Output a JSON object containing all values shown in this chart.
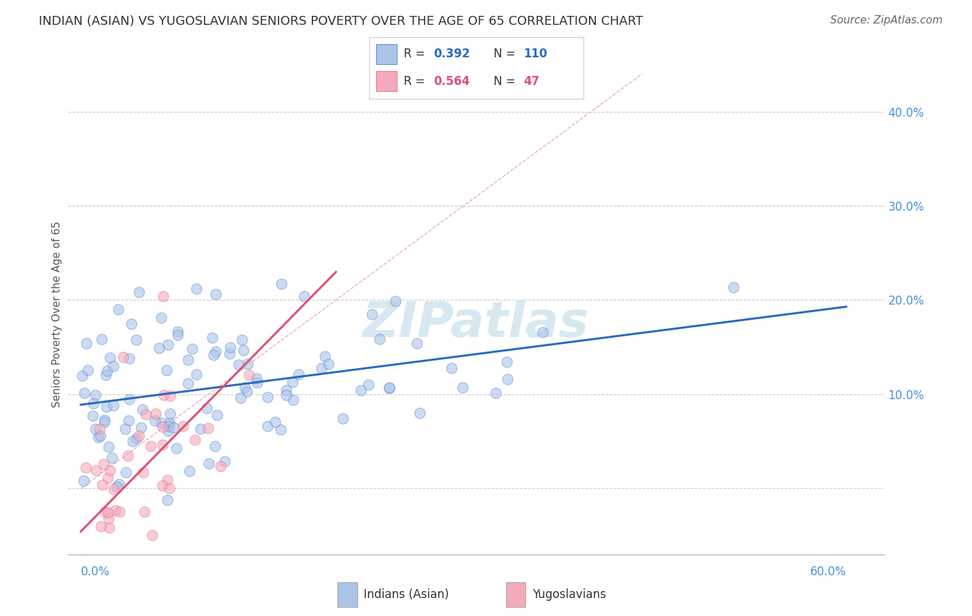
{
  "title": "INDIAN (ASIAN) VS YUGOSLAVIAN SENIORS POVERTY OVER THE AGE OF 65 CORRELATION CHART",
  "source": "Source: ZipAtlas.com",
  "ylabel": "Seniors Poverty Over the Age of 65",
  "indian_R": 0.392,
  "indian_N": 110,
  "yugo_R": 0.564,
  "yugo_N": 47,
  "indian_color": "#aac4e8",
  "indian_line_color": "#2a6bbf",
  "yugo_color": "#f4aaba",
  "yugo_line_color": "#e05075",
  "diagonal_color": "#d0d0d0",
  "background_color": "#ffffff",
  "grid_color": "#cccccc",
  "title_color": "#333333",
  "axis_label_color": "#4a90d9",
  "title_fontsize": 13,
  "source_fontsize": 11,
  "legend_fontsize": 13,
  "tick_fontsize": 12,
  "watermark_color": "#d8e8f0",
  "xlim": [
    -0.01,
    0.63
  ],
  "ylim": [
    -0.07,
    0.44
  ],
  "ytick_positions": [
    0.0,
    0.1,
    0.2,
    0.3,
    0.4
  ],
  "ytick_labels": [
    "",
    "10.0%",
    "20.0%",
    "30.0%",
    "40.0%"
  ]
}
